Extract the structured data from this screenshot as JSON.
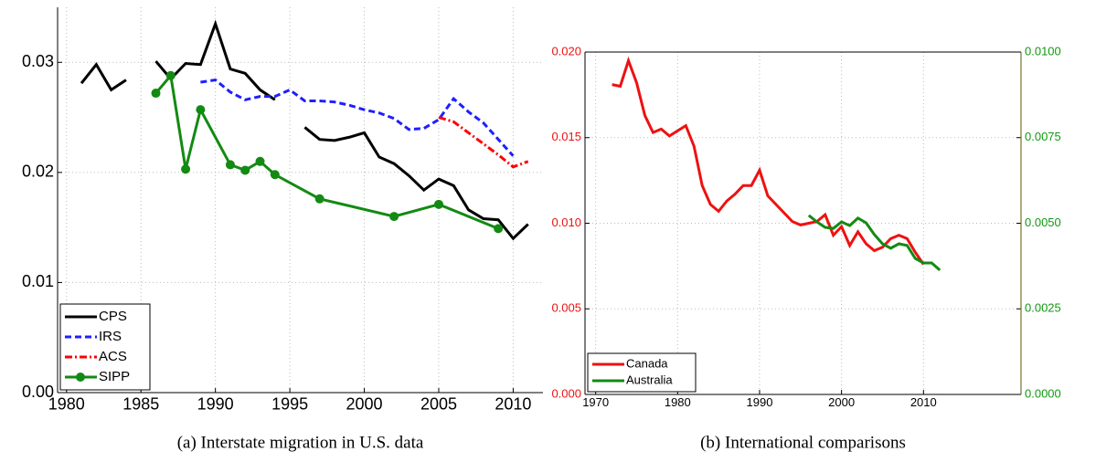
{
  "chart_data": [
    {
      "type": "line",
      "caption": "(a) Interstate migration in U.S. data",
      "xlim": [
        1979.4,
        2012
      ],
      "xticks": [
        1980,
        1985,
        1990,
        1995,
        2000,
        2005,
        2010
      ],
      "ylim": [
        0,
        0.035
      ],
      "yticks": [
        {
          "value": 0,
          "label": "0.00"
        },
        0.01,
        0.02,
        0.03
      ],
      "grid": true,
      "legend": "lower left",
      "series": [
        {
          "name": "CPS",
          "color": "#000000",
          "dash": "solid",
          "x": [
            1981,
            1982,
            1983,
            1984,
            1985,
            1986,
            1987,
            1988,
            1989,
            1990,
            1991,
            1992,
            1993,
            1994,
            1995,
            1996,
            1997,
            1998,
            1999,
            2000,
            2001,
            2002,
            2003,
            2004,
            2005,
            2006,
            2007,
            2008,
            2009,
            2010,
            2011
          ],
          "values": [
            0.0281,
            0.0298,
            0.0275,
            0.0284,
            null,
            0.0301,
            0.0285,
            0.0299,
            0.0298,
            0.0335,
            0.0294,
            0.029,
            0.0275,
            0.0266,
            null,
            0.0241,
            0.023,
            0.0229,
            0.0232,
            0.0236,
            0.0214,
            0.0208,
            0.0197,
            0.0184,
            0.0194,
            0.0188,
            0.0166,
            0.0158,
            0.0157,
            0.014,
            0.0153
          ]
        },
        {
          "name": "IRS",
          "color": "#1f1fff",
          "dash": "dashed",
          "x": [
            1989,
            1990,
            1991,
            1992,
            1993,
            1994,
            1995,
            1996,
            1997,
            1998,
            1999,
            2000,
            2001,
            2002,
            2003,
            2004,
            2005,
            2006,
            2007,
            2008,
            2009,
            2010
          ],
          "values": [
            0.0282,
            0.0284,
            0.0273,
            0.0266,
            0.0269,
            0.0269,
            0.0275,
            0.0265,
            0.0265,
            0.0264,
            0.0261,
            0.0257,
            0.0254,
            0.0249,
            0.0239,
            0.024,
            0.0248,
            0.0267,
            0.0255,
            0.0245,
            0.023,
            0.0215
          ]
        },
        {
          "name": "ACS",
          "color": "#ff0000",
          "dash": "dashdot",
          "x": [
            2005,
            2006,
            2007,
            2008,
            2009,
            2010,
            2011
          ],
          "values": [
            0.025,
            0.0246,
            0.0236,
            0.0226,
            0.0216,
            0.0205,
            0.021
          ]
        },
        {
          "name": "SIPP",
          "color": "#138a13",
          "dash": "solid",
          "marker": "circle",
          "x": [
            1986,
            1987,
            1988,
            1989,
            1991,
            1992,
            1993,
            1994,
            1997,
            2002,
            2005,
            2009
          ],
          "values": [
            0.0272,
            0.0288,
            0.0203,
            0.0257,
            0.0207,
            0.0202,
            0.021,
            0.0198,
            0.0176,
            0.016,
            0.0171,
            0.0149
          ]
        }
      ]
    },
    {
      "type": "line",
      "caption": "(b) International comparisons",
      "xlim": [
        1968.7,
        2021.9
      ],
      "xticks": [
        1970,
        1980,
        1990,
        2000,
        2010
      ],
      "ylim": [
        0,
        0.02
      ],
      "yticks": [
        {
          "value": 0,
          "label": "0.000"
        },
        {
          "value": 0.005,
          "label": "0.005"
        },
        {
          "value": 0.01,
          "label": "0.010"
        },
        {
          "value": 0.015,
          "label": "0.015"
        },
        {
          "value": 0.02,
          "label": "0.020"
        }
      ],
      "y2lim": [
        0,
        0.01
      ],
      "y2ticks": [
        {
          "value": 0,
          "label": "0.0000"
        },
        {
          "value": 0.0025,
          "label": "0.0025"
        },
        {
          "value": 0.005,
          "label": "0.0050"
        },
        {
          "value": 0.0075,
          "label": "0.0075"
        },
        {
          "value": 0.01,
          "label": "0.0100"
        }
      ],
      "ycolor": "#ee1111",
      "y2color": "#119911",
      "grid": true,
      "legend": "lower left",
      "series": [
        {
          "name": "Canada",
          "color": "#ee1111",
          "dash": "solid",
          "x": [
            1972,
            1973,
            1974,
            1975,
            1976,
            1977,
            1978,
            1979,
            1980,
            1981,
            1982,
            1983,
            1984,
            1985,
            1986,
            1987,
            1988,
            1989,
            1990,
            1991,
            1992,
            1993,
            1994,
            1995,
            1996,
            1997,
            1998,
            1999,
            2000,
            2001,
            2002,
            2003,
            2004,
            2005,
            2006,
            2007,
            2008,
            2009,
            2010
          ],
          "values": [
            0.0181,
            0.018,
            0.0195,
            0.0182,
            0.0163,
            0.0153,
            0.0155,
            0.0151,
            0.0154,
            0.0157,
            0.0145,
            0.0122,
            0.0111,
            0.0107,
            0.0113,
            0.0117,
            0.0122,
            0.0122,
            0.0131,
            0.0116,
            0.0111,
            0.0106,
            0.0101,
            0.0099,
            0.01,
            0.0101,
            0.0105,
            0.0093,
            0.0098,
            0.0087,
            0.0095,
            0.0088,
            0.0084,
            0.0086,
            0.0091,
            0.0093,
            0.0091,
            0.0083,
            0.0076
          ]
        },
        {
          "name": "Australia",
          "color": "#138a13",
          "dash": "solid",
          "axis": "y2",
          "x": [
            1996,
            1997,
            1998,
            1999,
            2000,
            2001,
            2002,
            2003,
            2004,
            2005,
            2006,
            2007,
            2008,
            2009,
            2010,
            2011,
            2012
          ],
          "values": [
            0.00523,
            0.00504,
            0.00488,
            0.00485,
            0.00504,
            0.00493,
            0.00515,
            0.00501,
            0.00467,
            0.0044,
            0.00427,
            0.0044,
            0.00435,
            0.00397,
            0.00384,
            0.00384,
            0.00363
          ]
        }
      ]
    }
  ]
}
